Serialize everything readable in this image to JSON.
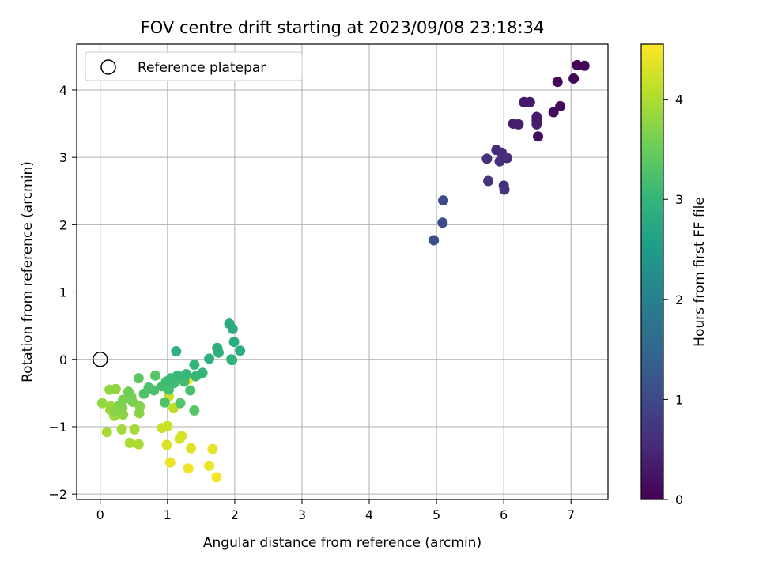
{
  "chart_data": {
    "type": "scatter",
    "title": "FOV centre drift starting at 2023/09/08 23:18:34",
    "xlabel": "Angular distance from reference (arcmin)",
    "ylabel": "Rotation from reference (arcmin)",
    "xlim": [
      -0.35,
      7.55
    ],
    "ylim": [
      -2.08,
      4.68
    ],
    "xticks": [
      0,
      1,
      2,
      3,
      4,
      5,
      6,
      7
    ],
    "yticks": [
      -2,
      -1,
      0,
      1,
      2,
      3,
      4
    ],
    "grid": true,
    "legend": {
      "placement": "top-left",
      "entries": [
        "Reference platepar"
      ]
    },
    "reference_point": {
      "x": 0,
      "y": 0
    },
    "colorbar": {
      "label": "Hours from first FF file",
      "colormap": "viridis",
      "range": [
        0,
        4.55
      ],
      "ticks": [
        0,
        1,
        2,
        3,
        4
      ]
    },
    "points": [
      {
        "x": 7.09,
        "y": 4.37,
        "c": 0.02
      },
      {
        "x": 7.2,
        "y": 4.36,
        "c": 0.04
      },
      {
        "x": 7.04,
        "y": 4.17,
        "c": 0.06
      },
      {
        "x": 6.8,
        "y": 4.12,
        "c": 0.08
      },
      {
        "x": 6.84,
        "y": 3.76,
        "c": 0.1
      },
      {
        "x": 6.74,
        "y": 3.67,
        "c": 0.12
      },
      {
        "x": 6.3,
        "y": 3.82,
        "c": 0.3
      },
      {
        "x": 6.39,
        "y": 3.82,
        "c": 0.32
      },
      {
        "x": 6.49,
        "y": 3.6,
        "c": 0.34
      },
      {
        "x": 6.49,
        "y": 3.55,
        "c": 0.36
      },
      {
        "x": 6.14,
        "y": 3.5,
        "c": 0.38
      },
      {
        "x": 6.22,
        "y": 3.49,
        "c": 0.4
      },
      {
        "x": 6.49,
        "y": 3.49,
        "c": 0.42
      },
      {
        "x": 6.51,
        "y": 3.31,
        "c": 0.14
      },
      {
        "x": 5.89,
        "y": 3.11,
        "c": 0.55
      },
      {
        "x": 5.97,
        "y": 3.07,
        "c": 0.57
      },
      {
        "x": 5.75,
        "y": 2.98,
        "c": 0.6
      },
      {
        "x": 6.05,
        "y": 2.99,
        "c": 0.58
      },
      {
        "x": 5.94,
        "y": 2.94,
        "c": 0.62
      },
      {
        "x": 5.77,
        "y": 2.65,
        "c": 0.66
      },
      {
        "x": 6.0,
        "y": 2.58,
        "c": 0.64
      },
      {
        "x": 6.01,
        "y": 2.52,
        "c": 0.68
      },
      {
        "x": 5.1,
        "y": 2.36,
        "c": 1.05
      },
      {
        "x": 5.09,
        "y": 2.03,
        "c": 1.1
      },
      {
        "x": 4.96,
        "y": 1.77,
        "c": 1.12
      },
      {
        "x": 1.92,
        "y": 0.53,
        "c": 2.8
      },
      {
        "x": 1.97,
        "y": 0.45,
        "c": 2.82
      },
      {
        "x": 1.99,
        "y": 0.26,
        "c": 2.84
      },
      {
        "x": 2.08,
        "y": 0.13,
        "c": 2.86
      },
      {
        "x": 1.74,
        "y": 0.17,
        "c": 2.88
      },
      {
        "x": 1.76,
        "y": 0.1,
        "c": 2.9
      },
      {
        "x": 1.13,
        "y": 0.12,
        "c": 2.92
      },
      {
        "x": 1.62,
        "y": 0.01,
        "c": 2.94
      },
      {
        "x": 1.95,
        "y": 0.0,
        "c": 2.96
      },
      {
        "x": 1.96,
        "y": -0.01,
        "c": 2.98
      },
      {
        "x": 1.4,
        "y": -0.08,
        "c": 3.0
      },
      {
        "x": 1.52,
        "y": -0.2,
        "c": 3.02
      },
      {
        "x": 1.28,
        "y": -0.22,
        "c": 3.04
      },
      {
        "x": 1.42,
        "y": -0.25,
        "c": 3.06
      },
      {
        "x": 1.15,
        "y": -0.24,
        "c": 3.08
      },
      {
        "x": 1.05,
        "y": -0.28,
        "c": 3.1
      },
      {
        "x": 0.98,
        "y": -0.33,
        "c": 3.12
      },
      {
        "x": 1.1,
        "y": -0.35,
        "c": 3.14
      },
      {
        "x": 1.25,
        "y": -0.33,
        "c": 3.16
      },
      {
        "x": 0.92,
        "y": -0.4,
        "c": 3.18
      },
      {
        "x": 1.02,
        "y": -0.45,
        "c": 3.2
      },
      {
        "x": 1.34,
        "y": -0.46,
        "c": 3.22
      },
      {
        "x": 0.8,
        "y": -0.46,
        "c": 3.24
      },
      {
        "x": 0.72,
        "y": -0.42,
        "c": 3.26
      },
      {
        "x": 0.65,
        "y": -0.51,
        "c": 3.3
      },
      {
        "x": 0.82,
        "y": -0.24,
        "c": 3.35
      },
      {
        "x": 0.57,
        "y": -0.28,
        "c": 3.38
      },
      {
        "x": 0.96,
        "y": -0.64,
        "c": 3.28
      },
      {
        "x": 1.19,
        "y": -0.65,
        "c": 3.32
      },
      {
        "x": 1.4,
        "y": -0.76,
        "c": 3.34
      },
      {
        "x": 0.42,
        "y": -0.48,
        "c": 3.55
      },
      {
        "x": 0.46,
        "y": -0.55,
        "c": 3.6
      },
      {
        "x": 0.34,
        "y": -0.6,
        "c": 3.62
      },
      {
        "x": 0.48,
        "y": -0.63,
        "c": 3.64
      },
      {
        "x": 0.29,
        "y": -0.68,
        "c": 3.66
      },
      {
        "x": 0.59,
        "y": -0.7,
        "c": 3.68
      },
      {
        "x": 0.33,
        "y": -0.72,
        "c": 3.7
      },
      {
        "x": 0.22,
        "y": -0.78,
        "c": 3.72
      },
      {
        "x": 0.58,
        "y": -0.8,
        "c": 3.74
      },
      {
        "x": 0.34,
        "y": -0.82,
        "c": 3.76
      },
      {
        "x": 0.14,
        "y": -0.45,
        "c": 3.78
      },
      {
        "x": 0.23,
        "y": -0.44,
        "c": 3.8
      },
      {
        "x": 0.03,
        "y": -0.65,
        "c": 3.82
      },
      {
        "x": 0.16,
        "y": -0.7,
        "c": 3.84
      },
      {
        "x": 0.15,
        "y": -0.75,
        "c": 3.86
      },
      {
        "x": 0.21,
        "y": -0.84,
        "c": 3.88
      },
      {
        "x": 0.32,
        "y": -1.04,
        "c": 3.9
      },
      {
        "x": 0.51,
        "y": -1.04,
        "c": 3.92
      },
      {
        "x": 0.1,
        "y": -1.08,
        "c": 3.94
      },
      {
        "x": 0.44,
        "y": -1.24,
        "c": 3.96
      },
      {
        "x": 0.57,
        "y": -1.26,
        "c": 3.98
      },
      {
        "x": 1.09,
        "y": -0.72,
        "c": 4.1
      },
      {
        "x": 1.02,
        "y": -0.55,
        "c": 4.15
      },
      {
        "x": 0.92,
        "y": -1.02,
        "c": 4.2
      },
      {
        "x": 1.0,
        "y": -0.99,
        "c": 4.22
      },
      {
        "x": 1.21,
        "y": -1.14,
        "c": 4.26
      },
      {
        "x": 1.18,
        "y": -1.18,
        "c": 4.28
      },
      {
        "x": 0.99,
        "y": -1.27,
        "c": 4.3
      },
      {
        "x": 1.35,
        "y": -1.32,
        "c": 4.34
      },
      {
        "x": 1.67,
        "y": -1.33,
        "c": 4.38
      },
      {
        "x": 1.04,
        "y": -1.53,
        "c": 4.4
      },
      {
        "x": 1.62,
        "y": -1.58,
        "c": 4.42
      },
      {
        "x": 1.31,
        "y": -1.62,
        "c": 4.44
      },
      {
        "x": 1.73,
        "y": -1.75,
        "c": 4.48
      },
      {
        "x": 1.31,
        "y": -0.3,
        "c": 4.52
      }
    ]
  }
}
